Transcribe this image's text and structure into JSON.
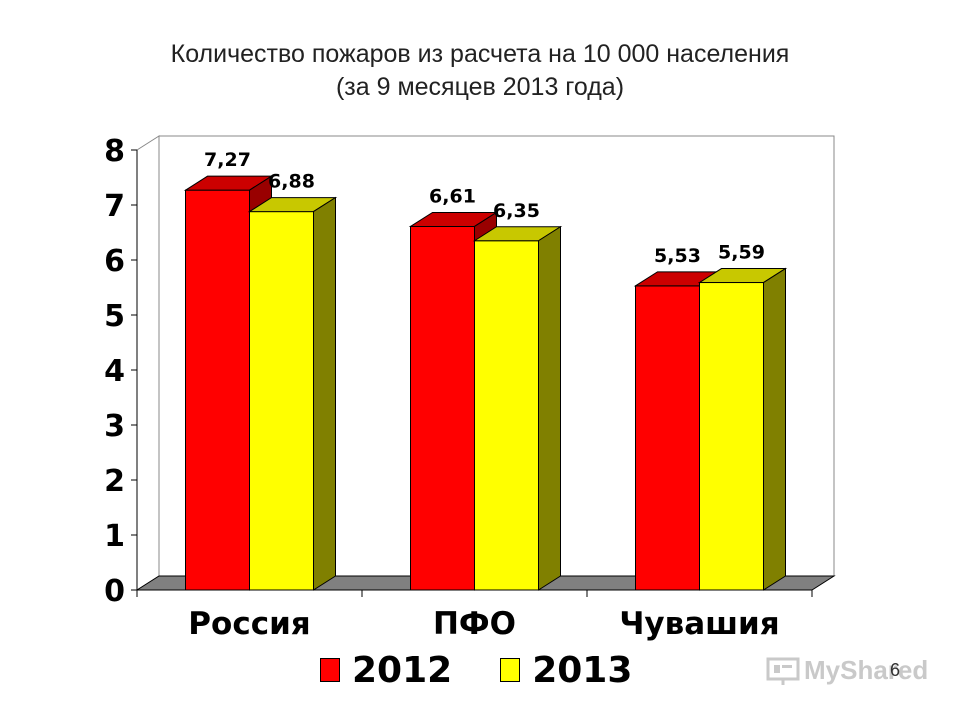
{
  "title_line1": "Количество пожаров из расчета на 10 000 населения",
  "title_line2": "(за 9 месяцев 2013 года)",
  "chart_data": {
    "type": "bar",
    "title": "Количество пожаров из расчета на 10 000 населения (за 9 месяцев 2013 года)",
    "categories": [
      "Россия",
      "ПФО",
      "Чувашия"
    ],
    "series": [
      {
        "name": "2012",
        "values": [
          7.27,
          6.61,
          5.53
        ],
        "labels": [
          "7,27",
          "6,61",
          "5,53"
        ],
        "color": "#FF0000",
        "side_color": "#990000",
        "top_color": "#CC0000"
      },
      {
        "name": "2013",
        "values": [
          6.88,
          6.35,
          5.59
        ],
        "labels": [
          "6,88",
          "6,35",
          "5,59"
        ],
        "color": "#FFFF00",
        "side_color": "#808000",
        "top_color": "#C8C800"
      }
    ],
    "ylim": [
      0,
      8
    ],
    "yticks": [
      0,
      1,
      2,
      3,
      4,
      5,
      6,
      7,
      8
    ],
    "grid": false,
    "legend_position": "bottom",
    "style": "3d"
  },
  "legend": {
    "item_2012": "2012",
    "item_2013": "2013",
    "color_2012": "#FF0000",
    "color_2013": "#FFFF00"
  },
  "page_number": "6",
  "watermark_text": "MyShared"
}
